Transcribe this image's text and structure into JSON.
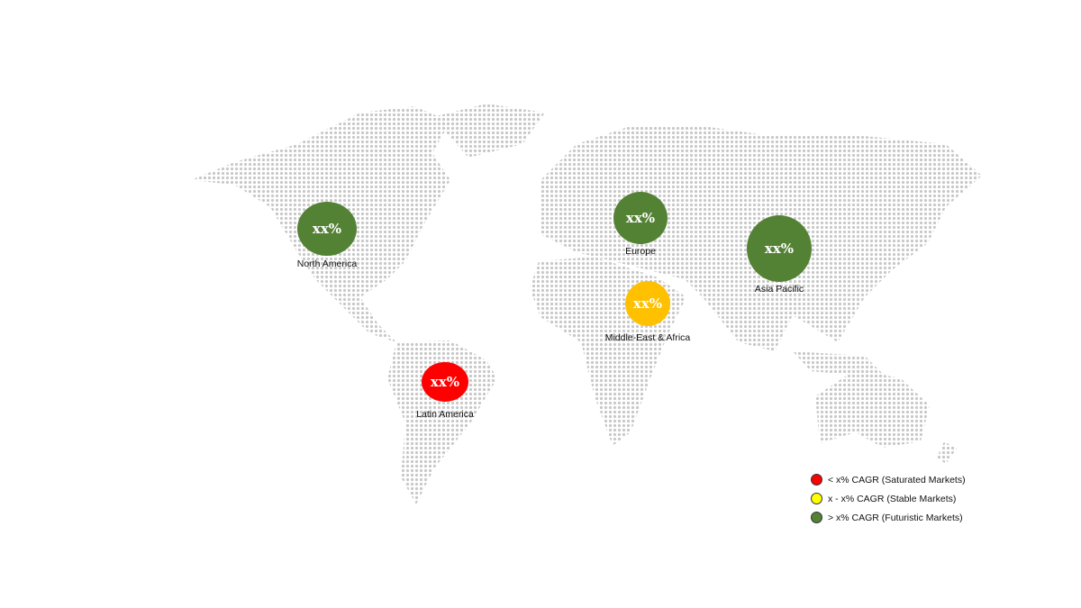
{
  "regions": [
    {
      "name": "North America",
      "value": "xx%",
      "color": "#548235"
    },
    {
      "name": "Europe",
      "value": "xx%",
      "color": "#548235"
    },
    {
      "name": "Asia Pacific",
      "value": "xx%",
      "color": "#548235"
    },
    {
      "name": "Middle-East & Africa",
      "value": "xx%",
      "color": "#ffc000"
    },
    {
      "name": "Latin America",
      "value": "xx%",
      "color": "#ff0000"
    }
  ],
  "legend": [
    {
      "label": "< x% CAGR (Saturated Markets)",
      "color": "#ff0000"
    },
    {
      "label": "x - x% CAGR (Stable Markets)",
      "color": "#ffff00"
    },
    {
      "label": "> x% CAGR (Futuristic Markets)",
      "color": "#548235"
    }
  ],
  "map_dot_color": "#c8c8c8"
}
